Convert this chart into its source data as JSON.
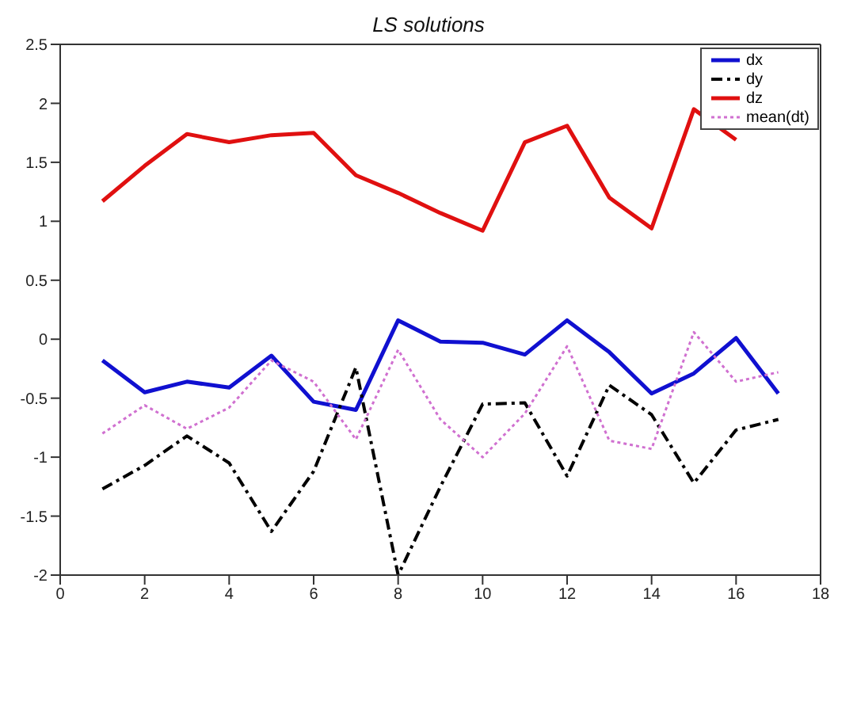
{
  "chart_data": {
    "type": "line",
    "title": "LS  solutions",
    "x": [
      1,
      2,
      3,
      4,
      5,
      6,
      7,
      8,
      9,
      10,
      11,
      12,
      13,
      14,
      15,
      16,
      17
    ],
    "xlim": [
      0,
      18
    ],
    "xticks": [
      0,
      2,
      4,
      6,
      8,
      10,
      12,
      14,
      16,
      18
    ],
    "ylim": [
      -2,
      2.5
    ],
    "yticks": [
      -2,
      -1.5,
      -1,
      -0.5,
      0,
      0.5,
      1,
      1.5,
      2,
      2.5
    ],
    "grid": false,
    "legend": "top right",
    "marker": "none",
    "series": [
      {
        "name": "dx",
        "color": "#1010d0",
        "line_style": "solid",
        "values": [
          -0.18,
          -0.45,
          -0.36,
          -0.41,
          -0.14,
          -0.53,
          -0.6,
          0.16,
          -0.02,
          -0.03,
          -0.13,
          0.16,
          -0.11,
          -0.46,
          -0.29,
          0.01,
          -0.46
        ]
      },
      {
        "name": "dy",
        "color": "#000000",
        "line_style": "dashed",
        "values": [
          -1.27,
          -1.07,
          -0.82,
          -1.05,
          -1.63,
          -1.12,
          -0.24,
          -2.0,
          -1.25,
          -0.55,
          -0.54,
          -1.16,
          -0.39,
          -0.64,
          -1.22,
          -0.77,
          -0.68
        ]
      },
      {
        "name": "dz",
        "color": "#e01010",
        "line_style": "solid",
        "values": [
          1.17,
          1.47,
          1.74,
          1.67,
          1.73,
          1.75,
          1.39,
          1.24,
          1.07,
          0.92,
          1.67,
          1.81,
          1.2,
          0.94,
          1.95,
          1.69,
          null
        ]
      },
      {
        "name": "mean(dt)",
        "color": "#d070d0",
        "line_style": "dotted",
        "values": [
          -0.8,
          -0.56,
          -0.76,
          -0.58,
          -0.18,
          -0.36,
          -0.85,
          -0.09,
          -0.68,
          -1.0,
          -0.63,
          -0.06,
          -0.86,
          -0.93,
          0.06,
          -0.36,
          -0.28
        ]
      }
    ]
  }
}
